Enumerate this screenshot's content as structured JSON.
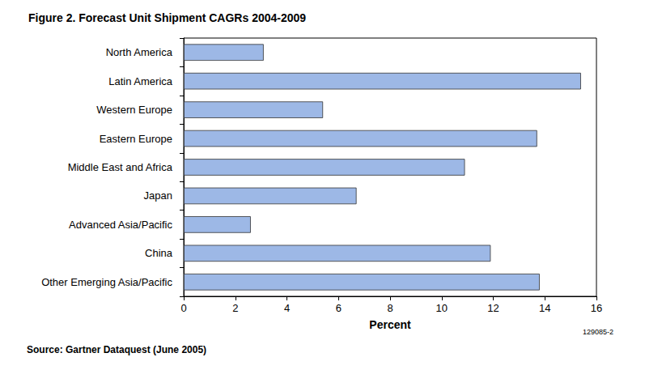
{
  "chart_data": {
    "type": "bar",
    "orientation": "horizontal",
    "title": "Figure 2. Forecast Unit Shipment CAGRs 2004-2009",
    "xlabel": "Percent",
    "categories": [
      "North America",
      "Latin America",
      "Western Europe",
      "Eastern Europe",
      "Middle East and Africa",
      "Japan",
      "Advanced Asia/Pacific",
      "China",
      "Other Emerging Asia/Pacific"
    ],
    "values": [
      3.1,
      15.4,
      5.4,
      13.7,
      10.9,
      6.7,
      2.6,
      11.9,
      13.8
    ],
    "color": "#9db8e6",
    "xlim": [
      0,
      16
    ],
    "xticks": [
      0,
      2,
      4,
      6,
      8,
      10,
      12,
      14,
      16
    ],
    "grid": false,
    "annotations": [
      "Source: Gartner Dataquest (June 2005)",
      "129085-2"
    ]
  }
}
